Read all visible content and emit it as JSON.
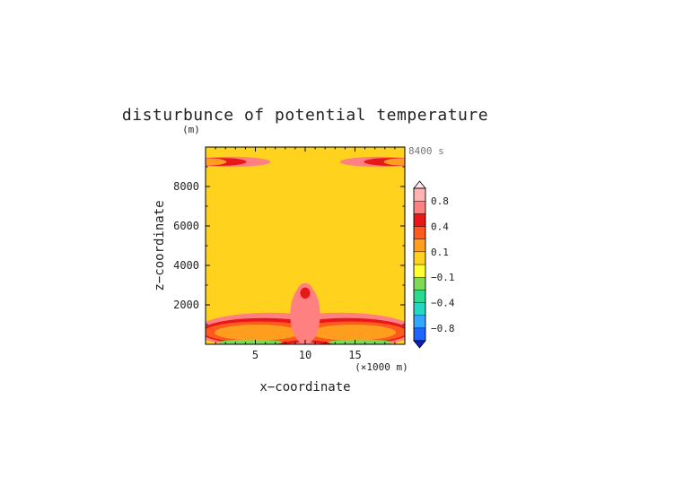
{
  "chart_data": {
    "type": "heatmap",
    "title": "disturbunce of potential temperature",
    "time_label": "8400 s",
    "xlabel": "x−coordinate",
    "x_units": "(×1000 m)",
    "ylabel": "z−coordinate",
    "y_units": "(m)",
    "xlim": [
      0,
      20
    ],
    "ylim": [
      0,
      10000
    ],
    "x_ticks": [
      5,
      10,
      15
    ],
    "x_tick_labels": [
      "5",
      "10",
      "15"
    ],
    "y_ticks": [
      2000,
      4000,
      6000,
      8000
    ],
    "y_tick_labels": [
      "2000",
      "4000",
      "6000",
      "8000"
    ],
    "colorbar": {
      "levels": [
        -1,
        -0.8,
        -0.6,
        -0.4,
        -0.2,
        -0.1,
        0,
        0.1,
        0.2,
        0.4,
        0.6,
        0.8,
        1
      ],
      "colors": [
        "#0a1fd4",
        "#1e64ff",
        "#33a6ff",
        "#26d6c4",
        "#2bd98f",
        "#7ed957",
        "#ffff33",
        "#ffd21e",
        "#ff9e1e",
        "#ff5a1e",
        "#e81818",
        "#ff8080",
        "#ffb3b3",
        "#ffe5e5"
      ],
      "labels": [
        "0.8",
        "0.4",
        "0.1",
        "−0.1",
        "−0.4",
        "−0.8"
      ],
      "label_values": [
        0.8,
        0.4,
        0.1,
        -0.1,
        -0.4,
        -0.8
      ],
      "extend": "both"
    },
    "background_value": 0.05,
    "features": [
      {
        "shape": "ellipse",
        "x": 6.5,
        "z": 700,
        "rx": 7.5,
        "rz": 900,
        "value": 0.7
      },
      {
        "shape": "ellipse",
        "x": 13.5,
        "z": 700,
        "rx": 7.5,
        "rz": 900,
        "value": 0.7
      },
      {
        "shape": "ellipse",
        "x": 5.8,
        "z": 650,
        "rx": 6.3,
        "rz": 680,
        "value": 0.5
      },
      {
        "shape": "ellipse",
        "x": 14.2,
        "z": 650,
        "rx": 6.3,
        "rz": 680,
        "value": 0.5
      },
      {
        "shape": "ellipse",
        "x": 5.5,
        "z": 620,
        "rx": 5.7,
        "rz": 540,
        "value": 0.3
      },
      {
        "shape": "ellipse",
        "x": 14.5,
        "z": 620,
        "rx": 5.7,
        "rz": 540,
        "value": 0.3
      },
      {
        "shape": "ellipse",
        "x": 5.2,
        "z": 600,
        "rx": 4.3,
        "rz": 400,
        "value": 0.15
      },
      {
        "shape": "ellipse",
        "x": 14.8,
        "z": 600,
        "rx": 4.3,
        "rz": 400,
        "value": 0.15
      },
      {
        "shape": "ellipse",
        "x": 10,
        "z": 1500,
        "rx": 1.5,
        "rz": 1500,
        "value": 0.7
      },
      {
        "shape": "ellipse",
        "x": 10,
        "z": 2500,
        "rx": 0.9,
        "rz": 600,
        "value": 0.7
      },
      {
        "shape": "ellipse",
        "x": 10,
        "z": 2600,
        "rx": 0.5,
        "rz": 280,
        "value": 0.5
      },
      {
        "shape": "ellipse",
        "x": 4.5,
        "z": 100,
        "rx": 3.2,
        "rz": 140,
        "value": -0.15
      },
      {
        "shape": "ellipse",
        "x": 15.5,
        "z": 100,
        "rx": 3.2,
        "rz": 140,
        "value": -0.15
      },
      {
        "shape": "ellipse",
        "x": 2.5,
        "z": 9250,
        "rx": 4,
        "rz": 260,
        "value": 0.7
      },
      {
        "shape": "ellipse",
        "x": 17.5,
        "z": 9250,
        "rx": 4,
        "rz": 260,
        "value": 0.7
      },
      {
        "shape": "ellipse",
        "x": 1.5,
        "z": 9250,
        "rx": 2.6,
        "rz": 200,
        "value": 0.5
      },
      {
        "shape": "ellipse",
        "x": 18.5,
        "z": 9250,
        "rx": 2.6,
        "rz": 200,
        "value": 0.5
      },
      {
        "shape": "ellipse",
        "x": 0.6,
        "z": 9250,
        "rx": 1.5,
        "rz": 170,
        "value": 0.15
      },
      {
        "shape": "ellipse",
        "x": 19.4,
        "z": 9250,
        "rx": 1.5,
        "rz": 170,
        "value": 0.15
      }
    ]
  }
}
